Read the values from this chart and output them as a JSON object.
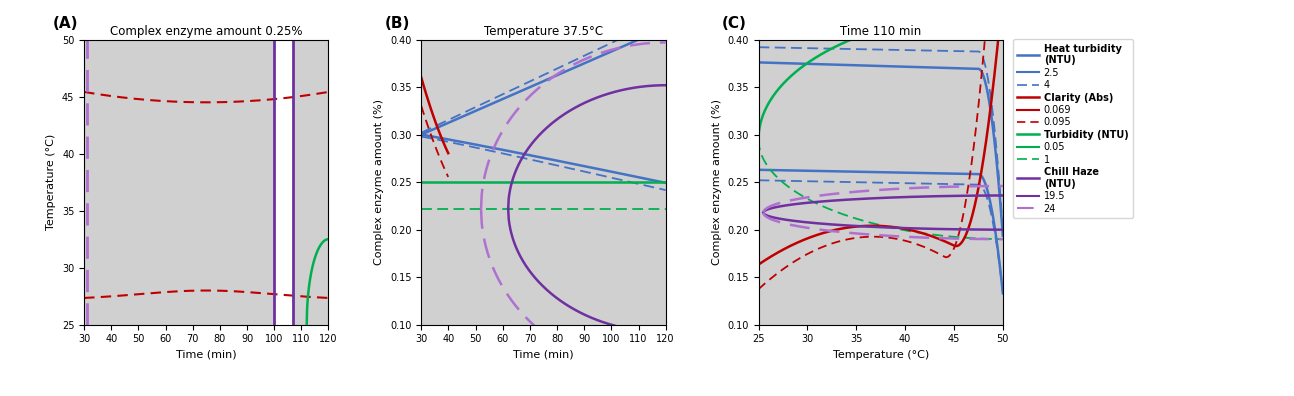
{
  "panel_A": {
    "title": "Complex enzyme amount 0.25%",
    "xlabel": "Time (min)",
    "ylabel": "Temperature (°C)",
    "xlim": [
      30,
      120
    ],
    "ylim": [
      25,
      50
    ],
    "xticks": [
      30,
      40,
      50,
      60,
      70,
      80,
      90,
      100,
      110,
      120
    ],
    "yticks": [
      25,
      30,
      35,
      40,
      45,
      50
    ],
    "bg_color": "#d0d0d0"
  },
  "panel_B": {
    "title": "Temperature 37.5°C",
    "xlabel": "Time (min)",
    "ylabel": "Complex enzyme amount (%)",
    "xlim": [
      30,
      120
    ],
    "ylim": [
      0.1,
      0.4
    ],
    "xticks": [
      30,
      40,
      50,
      60,
      70,
      80,
      90,
      100,
      110,
      120
    ],
    "yticks": [
      0.1,
      0.15,
      0.2,
      0.25,
      0.3,
      0.35,
      0.4
    ],
    "bg_color": "#d0d0d0"
  },
  "panel_C": {
    "title": "Time 110 min",
    "xlabel": "Temperature (°C)",
    "ylabel": "Complex enzyme amount (%)",
    "xlim": [
      25,
      50
    ],
    "ylim": [
      0.1,
      0.4
    ],
    "xticks": [
      25,
      30,
      35,
      40,
      45,
      50
    ],
    "yticks": [
      0.1,
      0.15,
      0.2,
      0.25,
      0.3,
      0.35,
      0.4
    ],
    "bg_color": "#d0d0d0"
  },
  "colors": {
    "blue_solid": "#4472c4",
    "blue_dash": "#4472c4",
    "red_solid": "#c00000",
    "red_dash": "#c00000",
    "green_solid": "#00b050",
    "green_dash": "#00b050",
    "purple_solid": "#7030a0",
    "purple_dash": "#b070d0"
  }
}
